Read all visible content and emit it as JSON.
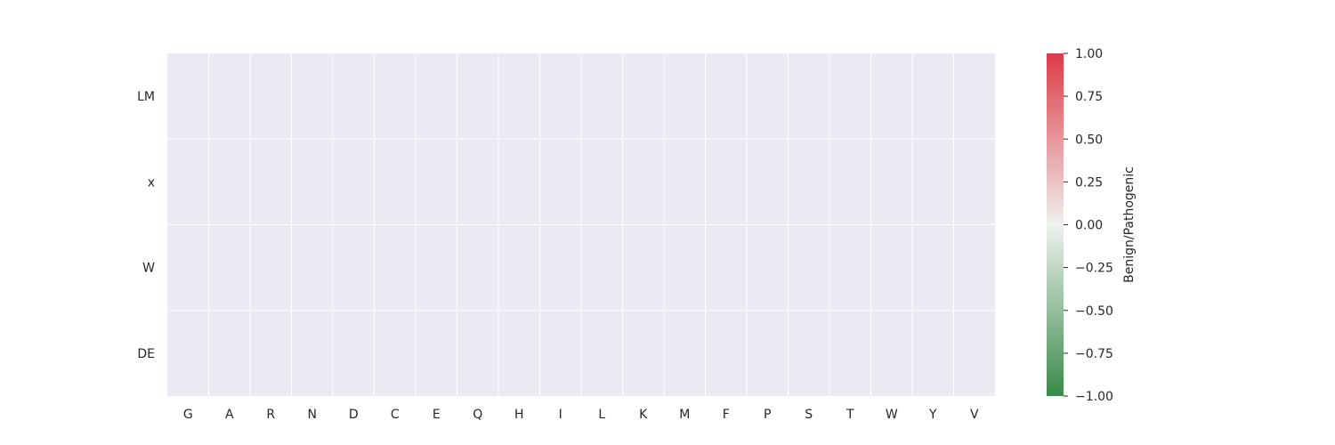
{
  "chart_data": {
    "type": "heatmap",
    "title": "",
    "xlabel": "",
    "ylabel": "",
    "x_categories": [
      "G",
      "A",
      "R",
      "N",
      "D",
      "C",
      "E",
      "Q",
      "H",
      "I",
      "L",
      "K",
      "M",
      "F",
      "P",
      "S",
      "T",
      "W",
      "Y",
      "V"
    ],
    "y_categories": [
      "LM",
      "x",
      "W",
      "DE"
    ],
    "values": [
      [
        null,
        null,
        null,
        null,
        null,
        null,
        null,
        null,
        null,
        null,
        null,
        null,
        null,
        null,
        null,
        null,
        null,
        null,
        null,
        null
      ],
      [
        null,
        null,
        null,
        null,
        null,
        null,
        null,
        null,
        null,
        null,
        null,
        null,
        null,
        null,
        null,
        null,
        null,
        null,
        null,
        null
      ],
      [
        null,
        null,
        null,
        null,
        null,
        null,
        null,
        null,
        null,
        null,
        null,
        null,
        null,
        null,
        null,
        null,
        null,
        null,
        null,
        null
      ],
      [
        null,
        null,
        null,
        null,
        null,
        null,
        null,
        null,
        null,
        null,
        null,
        null,
        null,
        null,
        null,
        null,
        null,
        null,
        null,
        null
      ]
    ],
    "colorbar": {
      "label": "Benign/Pathogenic",
      "range": [
        -1.0,
        1.0
      ],
      "ticks": [
        1.0,
        0.75,
        0.5,
        0.25,
        0.0,
        -0.25,
        -0.5,
        -0.75,
        -1.0
      ],
      "tick_labels": [
        "1.00",
        "0.75",
        "0.50",
        "0.25",
        "0.00",
        "−0.25",
        "−0.50",
        "−0.75",
        "−1.00"
      ],
      "colors": {
        "low": "#3a8a4a",
        "mid": "#eef1ee",
        "high": "#dd3b47"
      }
    },
    "background_color": "#eaeaf2",
    "grid_color": "#ffffff",
    "grid": true
  }
}
